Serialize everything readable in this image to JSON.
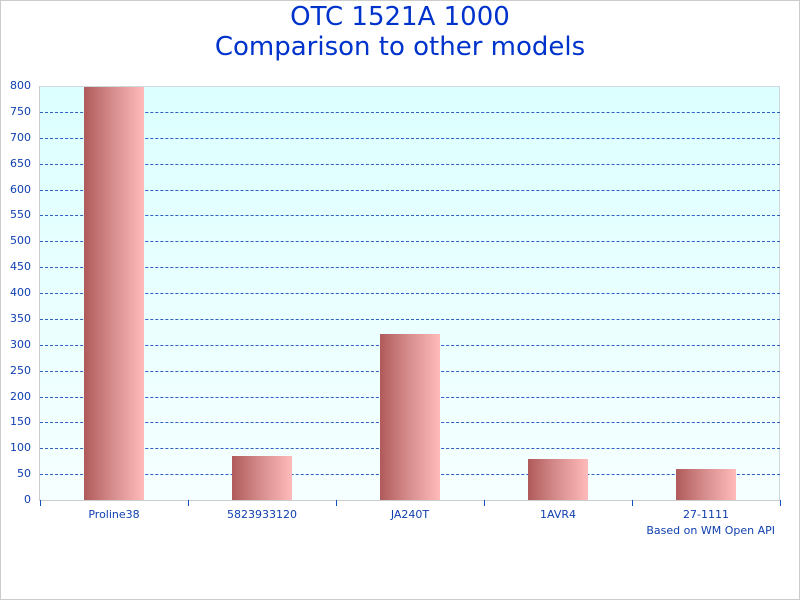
{
  "title_line1": "OTC 1521A 1000",
  "title_line2": "Comparison to other models",
  "credit": "Based on WM Open API",
  "colors": {
    "title": "#0033cc",
    "axis_text": "#1040b0",
    "gridline": "#3060c0",
    "plot_bg_top": "#dcffff",
    "plot_bg_bottom": "#f6ffff",
    "bar_dark": "#b05a5a",
    "bar_light": "#ffbaba"
  },
  "chart_data": {
    "type": "bar",
    "title": "OTC 1521A 1000 Comparison to other models",
    "xlabel": "",
    "ylabel": "",
    "categories": [
      "Proline38",
      "5823933120",
      "JA240T",
      "1AVR4",
      "27-1111"
    ],
    "values": [
      799,
      85,
      321,
      79,
      60
    ],
    "ylim": [
      0,
      800
    ],
    "yticks": [
      0,
      50,
      100,
      150,
      200,
      250,
      300,
      350,
      400,
      450,
      500,
      550,
      600,
      650,
      700,
      750,
      800
    ],
    "grid": true,
    "legend": null,
    "annotations": [
      "Based on WM Open API"
    ]
  }
}
